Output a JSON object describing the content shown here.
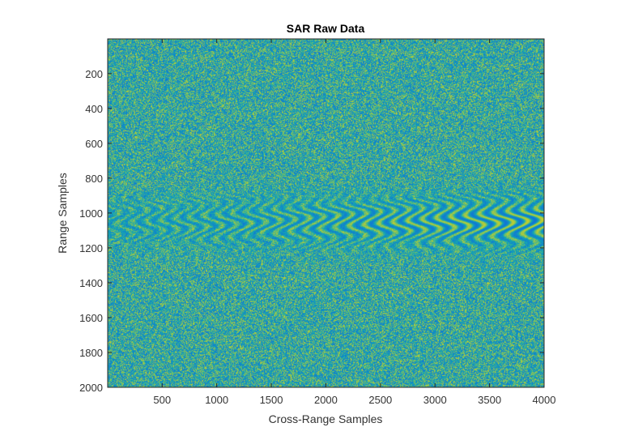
{
  "chart_data": {
    "type": "heatmap",
    "title": "SAR Raw Data",
    "xlabel": "Cross-Range Samples",
    "ylabel": "Range Samples",
    "xlim": [
      1,
      4000
    ],
    "ylim": [
      1,
      2000
    ],
    "y_direction": "reversed",
    "x_ticks": [
      500,
      1000,
      1500,
      2000,
      2500,
      3000,
      3500,
      4000
    ],
    "y_ticks": [
      200,
      400,
      600,
      800,
      1000,
      1200,
      1400,
      1600,
      1800,
      2000
    ],
    "x_tick_labels": [
      "500",
      "1000",
      "1500",
      "2000",
      "2500",
      "3000",
      "3500",
      "4000"
    ],
    "y_tick_labels": [
      "200",
      "400",
      "600",
      "800",
      "1000",
      "1200",
      "1400",
      "1600",
      "1800",
      "2000"
    ],
    "colormap": "parula",
    "colors": {
      "low": "#0f74d8",
      "mid": "#14a8b0",
      "high": "#c5d12a",
      "axis": "#262626",
      "tick_text": "#333333"
    },
    "description_band": {
      "range_center": 1050,
      "range_halfwidth": 150,
      "cross_range_start": 1,
      "cross_range_end": 4000
    },
    "grid": false,
    "legend": "none"
  }
}
